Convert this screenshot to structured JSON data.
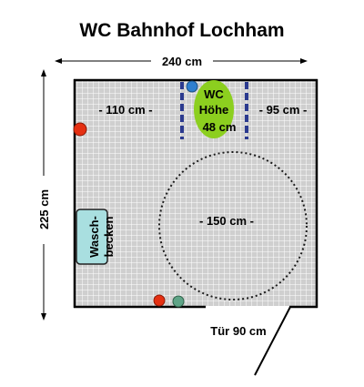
{
  "title": "WC Bahnhof Lochham",
  "width_label": "240 cm",
  "depth_label": "225 cm",
  "left_gap_label": "- 110 cm -",
  "right_gap_label": "- 95 cm -",
  "wc_line1": "WC",
  "wc_line2": "Höhe",
  "wc_line3": "48 cm",
  "turning_circle_label": "- 150 cm -",
  "sink_line1": "Wasch-",
  "sink_line2": "becken",
  "door_label": "Tür 90 cm",
  "colors": {
    "wc": "#8ccf1f",
    "wc_button": "#2f7fcf",
    "grab_bar": "#2b3a8f",
    "red_button": "#e53012",
    "green_button": "#5fa487",
    "sink": "#a9dfe0",
    "wall": "#000000",
    "tile": "#cfcfcf",
    "tile_line": "#ffffff"
  }
}
